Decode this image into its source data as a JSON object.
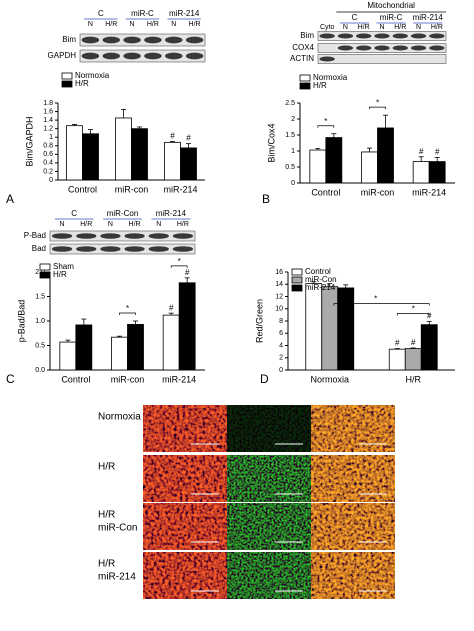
{
  "chart_data": [
    {
      "type": "bar",
      "panel": "A",
      "ylabel": "Bim/GAPDH",
      "categories": [
        "Control",
        "miR-con",
        "miR-214"
      ],
      "series": [
        {
          "name": "Normoxia",
          "color": "#ffffff",
          "values": [
            1.27,
            1.45,
            0.88
          ],
          "errors": [
            0.03,
            0.2,
            0.02
          ]
        },
        {
          "name": "H/R",
          "color": "#000000",
          "values": [
            1.08,
            1.2,
            0.75
          ],
          "errors": [
            0.1,
            0.04,
            0.1
          ]
        }
      ],
      "ylim": [
        0,
        1.8
      ],
      "yticks": [
        0,
        0.2,
        0.4,
        0.6,
        0.8,
        1,
        1.2,
        1.4,
        1.6,
        1.8
      ],
      "annotations": [
        "#",
        "#"
      ]
    },
    {
      "type": "bar",
      "panel": "B",
      "ylabel": "Bim/Cox4",
      "categories": [
        "Control",
        "miR-con",
        "miR-214"
      ],
      "series": [
        {
          "name": "Normoxia",
          "color": "#ffffff",
          "values": [
            1.03,
            0.97,
            0.67
          ],
          "errors": [
            0.05,
            0.12,
            0.15
          ]
        },
        {
          "name": "H/R",
          "color": "#000000",
          "values": [
            1.42,
            1.72,
            0.67
          ],
          "errors": [
            0.12,
            0.4,
            0.13
          ]
        }
      ],
      "ylim": [
        0,
        2.5
      ],
      "yticks": [
        0,
        0.5,
        1,
        1.5,
        2,
        2.5
      ],
      "annotations": [
        "*",
        "*",
        "#",
        "#"
      ]
    },
    {
      "type": "bar",
      "panel": "C",
      "ylabel": "p-Bad/Bad",
      "categories": [
        "Control",
        "miR-con",
        "miR-214"
      ],
      "series": [
        {
          "name": "Sham",
          "color": "#ffffff",
          "values": [
            0.57,
            0.67,
            1.12
          ],
          "errors": [
            0.04,
            0.02,
            0.04
          ]
        },
        {
          "name": "H/R",
          "color": "#000000",
          "values": [
            0.92,
            0.93,
            1.78
          ],
          "errors": [
            0.12,
            0.07,
            0.1
          ]
        }
      ],
      "ylim": [
        0,
        2
      ],
      "yticks": [
        {
          "value": 0,
          "label": "0.0"
        },
        0.5,
        {
          "value": 1,
          "label": "1.0"
        },
        1.5,
        {
          "value": 2,
          "label": "2.0"
        }
      ],
      "annotations": [
        "*",
        "#",
        "#",
        "*"
      ]
    },
    {
      "type": "bar",
      "panel": "D",
      "ylabel": "Red/Green",
      "categories": [
        "Normoxia",
        "H/R"
      ],
      "series": [
        {
          "name": "Control",
          "color": "#ffffff",
          "values": [
            14.1,
            3.4
          ],
          "errors": [
            0.3,
            0.1
          ]
        },
        {
          "name": "miR-Con",
          "color": "#aaaaaa",
          "values": [
            13.6,
            3.5
          ],
          "errors": [
            0.5,
            0.1
          ]
        },
        {
          "name": "miR-214",
          "color": "#000000",
          "values": [
            13.4,
            7.4
          ],
          "errors": [
            0.5,
            0.5
          ]
        }
      ],
      "ylim": [
        0,
        16
      ],
      "yticks": [
        0,
        2,
        4,
        6,
        8,
        10,
        12,
        14,
        16
      ],
      "annotations": [
        "#",
        "#",
        "#",
        "*",
        "*"
      ]
    }
  ],
  "blots": [
    {
      "groups": [
        "C",
        "miR-C",
        "miR-214"
      ],
      "lanes": [
        "N",
        "H/R",
        "N",
        "H/R",
        "N",
        "H/R"
      ],
      "rows": [
        "Bim",
        "GAPDH"
      ]
    },
    {
      "header": "Mitochondrial",
      "extra_lane": "Cyto",
      "groups": [
        "C",
        "miR-C",
        "miR-214"
      ],
      "lanes": [
        "N",
        "H/R",
        "N",
        "H/R",
        "N",
        "H/R"
      ],
      "rows": [
        "Bim",
        "COX4",
        "ACTIN"
      ]
    },
    {
      "groups": [
        "C",
        "miR-Con",
        "miR-214"
      ],
      "lanes": [
        "N",
        "H/R",
        "N",
        "H/R",
        "N",
        "H/R"
      ],
      "rows": [
        "P-Bad",
        "Bad"
      ]
    }
  ],
  "micrographs": {
    "row_labels": [
      [
        "Normoxia"
      ],
      [
        "H/R"
      ],
      [
        "H/R",
        "miR-Con"
      ],
      [
        "H/R",
        "miR-214"
      ]
    ]
  }
}
